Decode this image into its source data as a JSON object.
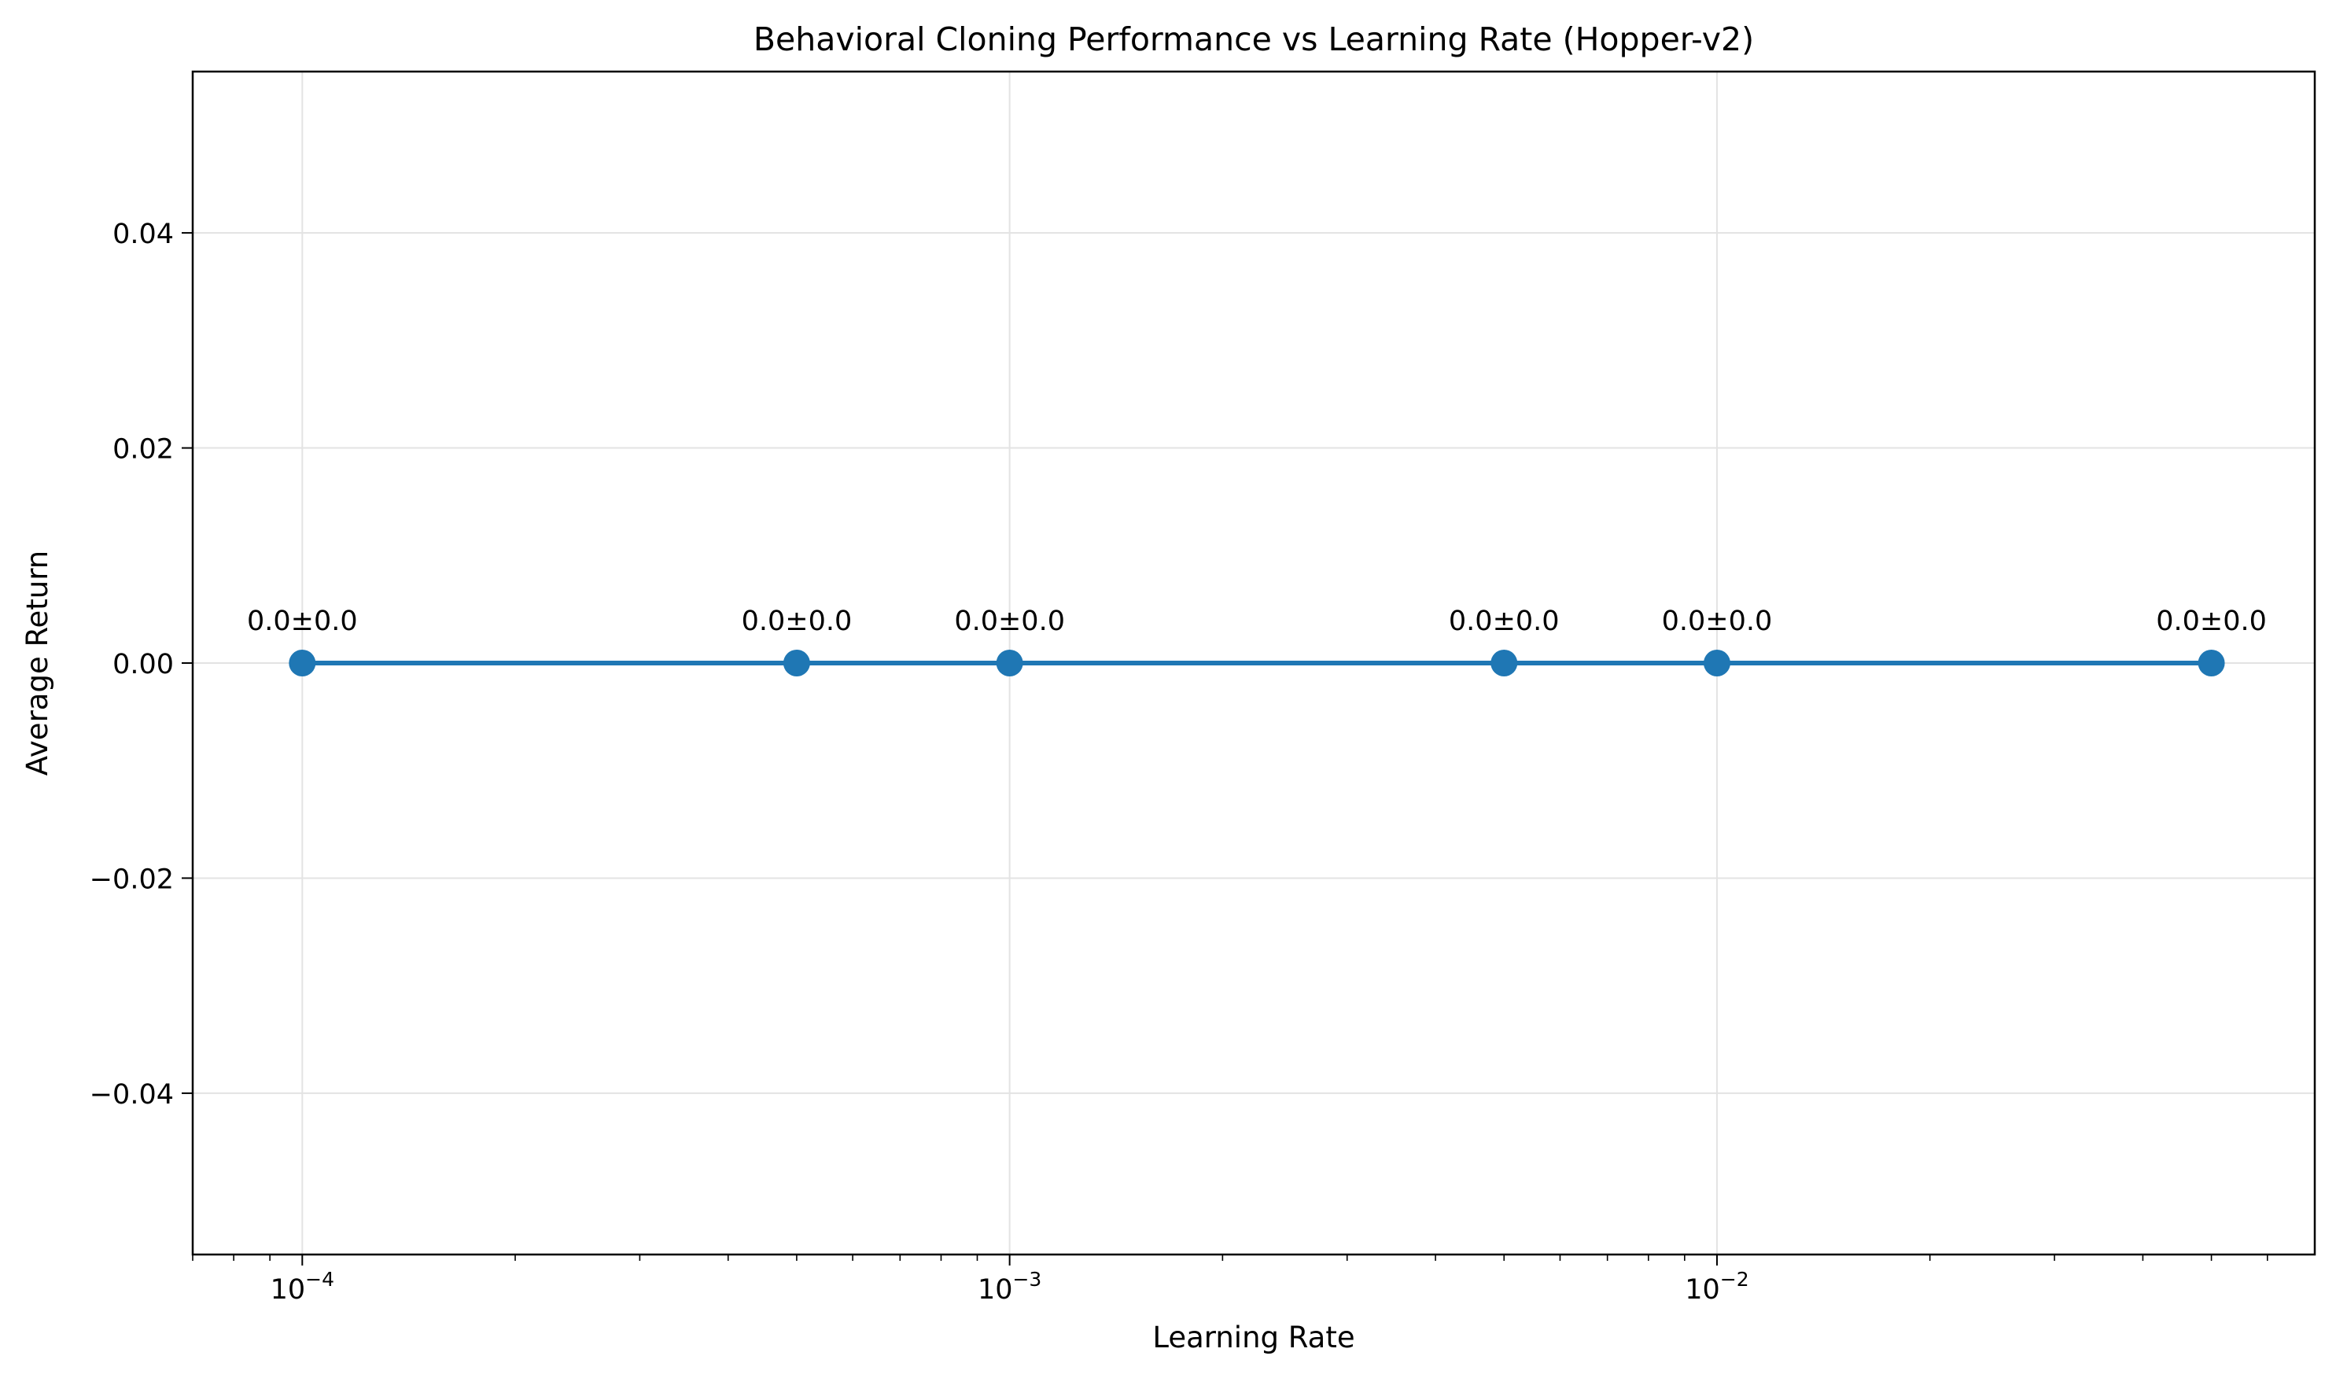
{
  "chart_data": {
    "type": "line",
    "title": "Behavioral Cloning Performance vs Learning Rate (Hopper-v2)",
    "xlabel": "Learning Rate",
    "ylabel": "Average Return",
    "xscale": "log",
    "xlim": [
      7e-05,
      0.07
    ],
    "ylim": [
      -0.055,
      0.055
    ],
    "x_ticks": [
      {
        "value": 0.0001,
        "base": "10",
        "exp": "−4"
      },
      {
        "value": 0.001,
        "base": "10",
        "exp": "−3"
      },
      {
        "value": 0.01,
        "base": "10",
        "exp": "−2"
      }
    ],
    "y_ticks": [
      {
        "value": 0.04,
        "label": "0.04"
      },
      {
        "value": 0.02,
        "label": "0.02"
      },
      {
        "value": 0.0,
        "label": "0.00"
      },
      {
        "value": -0.02,
        "label": "−0.02"
      },
      {
        "value": -0.04,
        "label": "−0.04"
      }
    ],
    "grid": true,
    "series": [
      {
        "color": "#1f77b4",
        "x": [
          0.0001,
          0.0005,
          0.001,
          0.005,
          0.01,
          0.05
        ],
        "y": [
          0.0,
          0.0,
          0.0,
          0.0,
          0.0,
          0.0
        ],
        "labels": [
          "0.0±0.0",
          "0.0±0.0",
          "0.0±0.0",
          "0.0±0.0",
          "0.0±0.0",
          "0.0±0.0"
        ]
      }
    ]
  }
}
